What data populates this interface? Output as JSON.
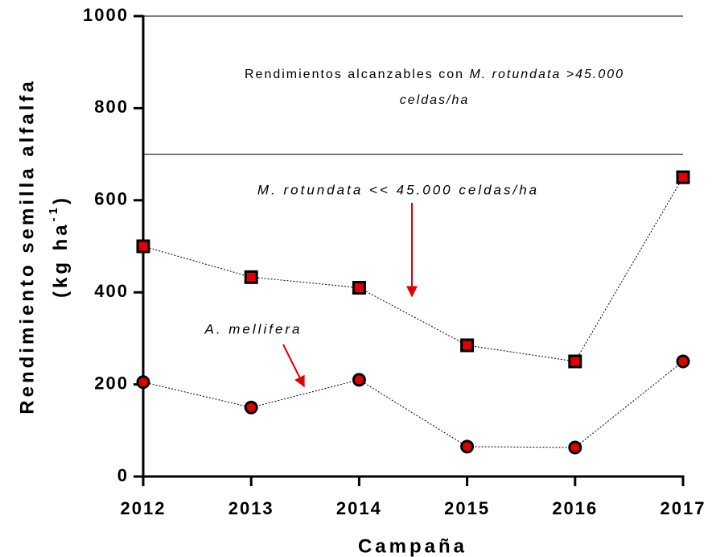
{
  "chart_data": {
    "type": "line",
    "categories": [
      "2012",
      "2013",
      "2014",
      "2015",
      "2016",
      "2017"
    ],
    "series": [
      {
        "name": "M. rotundata << 45.000 celdas/ha",
        "color": "#e00000",
        "marker": "square",
        "values": [
          500,
          433,
          410,
          285,
          250,
          650
        ]
      },
      {
        "name": "A. mellifera",
        "color": "#e00000",
        "marker": "circle",
        "values": [
          205,
          150,
          210,
          65,
          63,
          250
        ]
      }
    ],
    "ylim": [
      0,
      1000
    ],
    "yticks": [
      0,
      200,
      400,
      600,
      800,
      1000
    ],
    "hlines": [
      1000,
      700
    ],
    "annotation": {
      "line1": "Rendimientos alcanzables con ",
      "line1_italic": "M. rotundata >45.000",
      "line2": "celdas/ha"
    },
    "x_label": "Campaña",
    "y_label": {
      "line1": "Rendimiento semilla alfalfa",
      "line2": "(kg ha",
      "superscript": "-1",
      "line2_end": ")"
    }
  }
}
